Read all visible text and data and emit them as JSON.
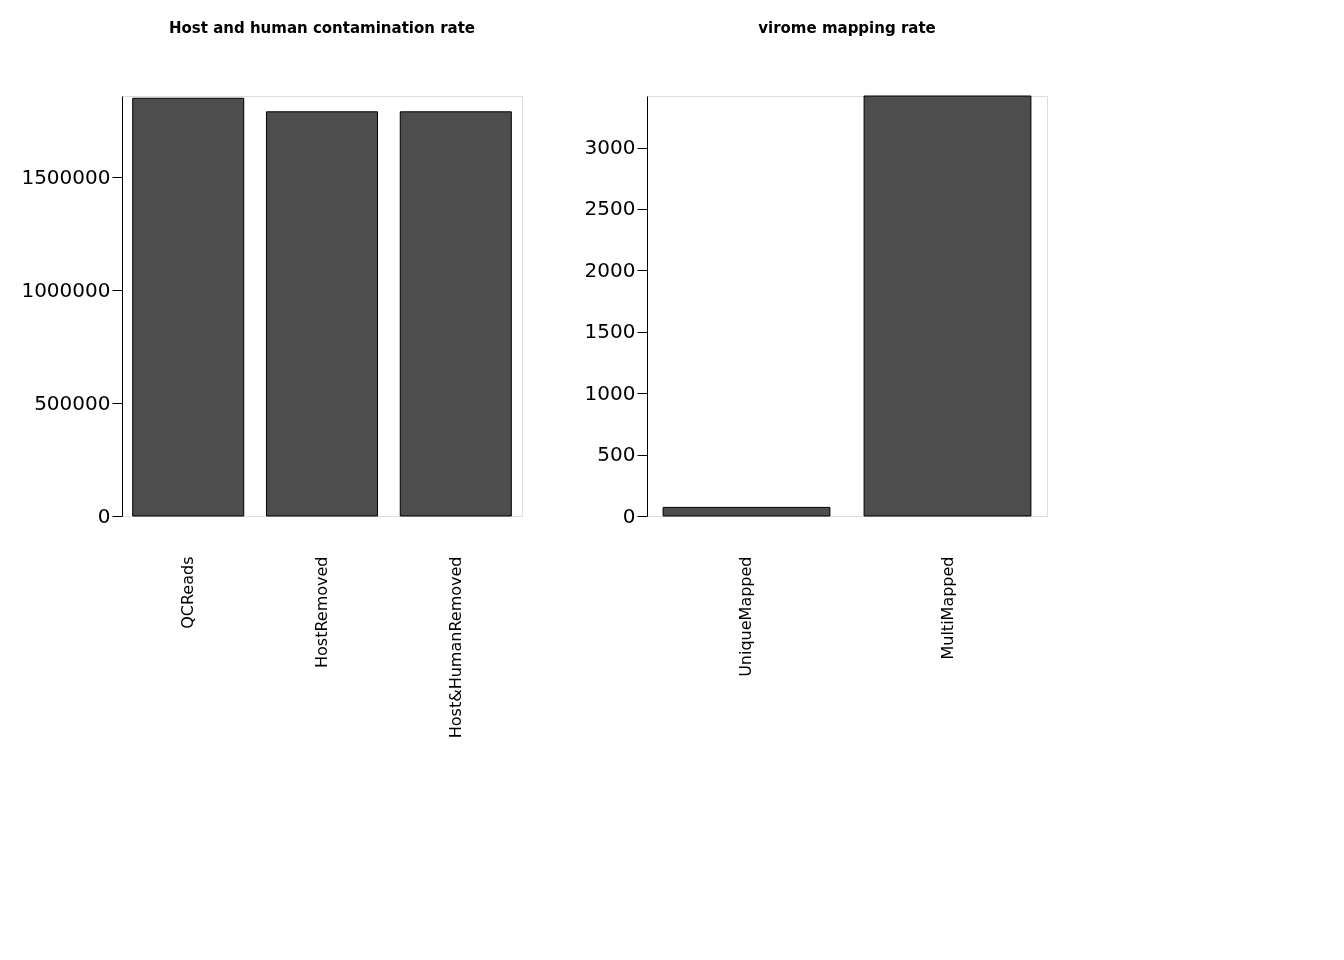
{
  "chart_data": [
    {
      "type": "bar",
      "title": "Host and human contamination rate",
      "categories": [
        "QCReads",
        "HostRemoved",
        "Host&HumanRemoved"
      ],
      "values": [
        1850000,
        1790000,
        1790000
      ],
      "color": "#4d4d4d",
      "ylim": [
        0,
        1860000
      ],
      "yticks": [
        0,
        500000,
        1000000,
        1500000
      ]
    },
    {
      "type": "bar",
      "title": "virome mapping rate",
      "categories": [
        "UniqueMapped",
        "MultiMapped"
      ],
      "values": [
        70,
        3420
      ],
      "color": "#4d4d4d",
      "ylim": [
        0,
        3420
      ],
      "yticks": [
        0,
        500,
        1000,
        1500,
        2000,
        2500,
        3000
      ]
    }
  ]
}
